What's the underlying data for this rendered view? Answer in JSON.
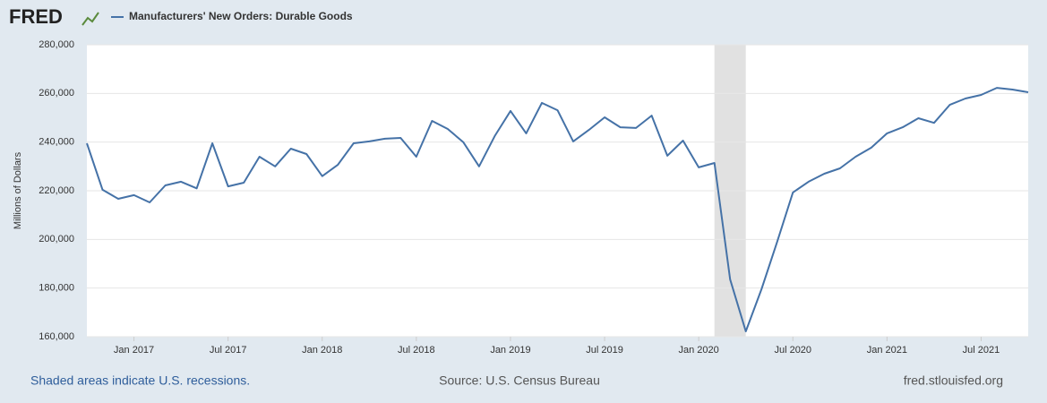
{
  "chart_data": {
    "type": "line",
    "brand": "FRED",
    "ylabel": "Millions of Dollars",
    "note": "Shaded areas indicate U.S. recessions.",
    "source": "Source: U.S. Census Bureau",
    "site": "fred.stlouisfed.org",
    "x": [
      "2016-10",
      "2016-11",
      "2016-12",
      "2017-01",
      "2017-02",
      "2017-03",
      "2017-04",
      "2017-05",
      "2017-06",
      "2017-07",
      "2017-08",
      "2017-09",
      "2017-10",
      "2017-11",
      "2017-12",
      "2018-01",
      "2018-02",
      "2018-03",
      "2018-04",
      "2018-05",
      "2018-06",
      "2018-07",
      "2018-08",
      "2018-09",
      "2018-10",
      "2018-11",
      "2018-12",
      "2019-01",
      "2019-02",
      "2019-03",
      "2019-04",
      "2019-05",
      "2019-06",
      "2019-07",
      "2019-08",
      "2019-09",
      "2019-10",
      "2019-11",
      "2019-12",
      "2020-01",
      "2020-02",
      "2020-03",
      "2020-04",
      "2020-05",
      "2020-06",
      "2020-07",
      "2020-08",
      "2020-09",
      "2020-10",
      "2020-11",
      "2020-12",
      "2021-01",
      "2021-02",
      "2021-03",
      "2021-04",
      "2021-05",
      "2021-06",
      "2021-07",
      "2021-08",
      "2021-09",
      "2021-10"
    ],
    "series": [
      {
        "name": "Manufacturers' New Orders: Durable Goods",
        "color": "#4572a7",
        "values": [
          239500,
          220400,
          216700,
          218200,
          215200,
          222200,
          223700,
          221000,
          239500,
          221800,
          223300,
          234000,
          230000,
          237300,
          235100,
          226000,
          230700,
          239500,
          240300,
          241400,
          241700,
          234000,
          248700,
          245400,
          239900,
          230000,
          242500,
          252800,
          243600,
          256100,
          253100,
          240300,
          245000,
          250200,
          246100,
          245800,
          250900,
          234400,
          240600,
          229600,
          231400,
          183600,
          162200,
          179500,
          199000,
          219300,
          223700,
          227000,
          229200,
          234000,
          237700,
          243600,
          246100,
          249800,
          247900,
          255300,
          257900,
          259400,
          262300,
          261600,
          260500
        ]
      }
    ],
    "recessions": [
      {
        "start": "2020-02",
        "end": "2020-04"
      }
    ],
    "recession_color": "#e1e1e1",
    "xlim": [
      "2016-10",
      "2021-10"
    ],
    "xticks": [
      {
        "value": "2017-01",
        "label": "Jan 2017"
      },
      {
        "value": "2017-07",
        "label": "Jul 2017"
      },
      {
        "value": "2018-01",
        "label": "Jan 2018"
      },
      {
        "value": "2018-07",
        "label": "Jul 2018"
      },
      {
        "value": "2019-01",
        "label": "Jan 2019"
      },
      {
        "value": "2019-07",
        "label": "Jul 2019"
      },
      {
        "value": "2020-01",
        "label": "Jan 2020"
      },
      {
        "value": "2020-07",
        "label": "Jul 2020"
      },
      {
        "value": "2021-01",
        "label": "Jan 2021"
      },
      {
        "value": "2021-07",
        "label": "Jul 2021"
      }
    ],
    "ylim": [
      160000,
      280000
    ],
    "yticks": [
      {
        "value": 160000,
        "label": "160,000"
      },
      {
        "value": 180000,
        "label": "180,000"
      },
      {
        "value": 200000,
        "label": "200,000"
      },
      {
        "value": 220000,
        "label": "220,000"
      },
      {
        "value": 240000,
        "label": "240,000"
      },
      {
        "value": 260000,
        "label": "260,000"
      },
      {
        "value": 280000,
        "label": "280,000"
      }
    ],
    "grid": true
  }
}
